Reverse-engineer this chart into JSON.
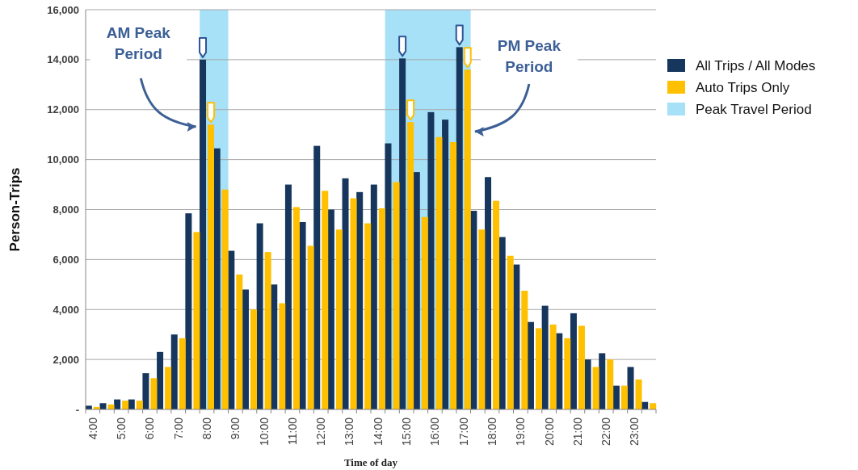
{
  "chart_data": {
    "type": "bar",
    "xlabel": "Time of day",
    "ylabel": "Person-Trips",
    "x": [
      4,
      4.5,
      5,
      5.5,
      6,
      6.5,
      7,
      7.5,
      8,
      8.5,
      9,
      9.5,
      10,
      10.5,
      11,
      11.5,
      12,
      12.5,
      13,
      13.5,
      14,
      14.5,
      15,
      15.5,
      16,
      16.5,
      17,
      17.5,
      18,
      18.5,
      19,
      19.5,
      20,
      20.5,
      21,
      21.5,
      22,
      22.5,
      23,
      23.5
    ],
    "xlim": [
      3.75,
      23.75
    ],
    "xticks": [
      {
        "value": 4,
        "label": "4:00"
      },
      {
        "value": 5,
        "label": "5:00"
      },
      {
        "value": 6,
        "label": "6:00"
      },
      {
        "value": 7,
        "label": "7:00"
      },
      {
        "value": 8,
        "label": "8:00"
      },
      {
        "value": 9,
        "label": "9:00"
      },
      {
        "value": 10,
        "label": "10:00"
      },
      {
        "value": 11,
        "label": "11:00"
      },
      {
        "value": 12,
        "label": "12:00"
      },
      {
        "value": 13,
        "label": "13:00"
      },
      {
        "value": 14,
        "label": "14:00"
      },
      {
        "value": 15,
        "label": "15:00"
      },
      {
        "value": 16,
        "label": "16:00"
      },
      {
        "value": 17,
        "label": "17:00"
      },
      {
        "value": 18,
        "label": "18:00"
      },
      {
        "value": 19,
        "label": "19:00"
      },
      {
        "value": 20,
        "label": "20:00"
      },
      {
        "value": 21,
        "label": "21:00"
      },
      {
        "value": 22,
        "label": "22:00"
      },
      {
        "value": 23,
        "label": "23:00"
      }
    ],
    "ylim": [
      0,
      16000
    ],
    "yticks": [
      {
        "value": 0,
        "label": "-"
      },
      {
        "value": 2000,
        "label": "2,000"
      },
      {
        "value": 4000,
        "label": "4,000"
      },
      {
        "value": 6000,
        "label": "6,000"
      },
      {
        "value": 8000,
        "label": "8,000"
      },
      {
        "value": 10000,
        "label": "10,000"
      },
      {
        "value": 12000,
        "label": "12,000"
      },
      {
        "value": 14000,
        "label": "14,000"
      },
      {
        "value": 16000,
        "label": "16,000"
      }
    ],
    "grid": "y",
    "legend": "right",
    "series": [
      {
        "name": "All Trips / All Modes",
        "color": "#17365d",
        "values": [
          150,
          250,
          400,
          400,
          1450,
          2300,
          3000,
          7850,
          14000,
          10450,
          6350,
          4800,
          7450,
          5000,
          9000,
          7500,
          10550,
          8000,
          9250,
          8700,
          9000,
          10650,
          14050,
          9500,
          11900,
          11600,
          14500,
          7950,
          9300,
          6900,
          5800,
          3500,
          4150,
          3050,
          3850,
          2000,
          2250,
          950,
          1700,
          300
        ]
      },
      {
        "name": "Auto Trips Only",
        "color": "#ffc000",
        "values": [
          100,
          200,
          350,
          350,
          1250,
          1700,
          2850,
          7100,
          11400,
          8800,
          5400,
          4000,
          6300,
          4250,
          8100,
          6550,
          8750,
          7200,
          8450,
          7450,
          8050,
          9100,
          11500,
          7700,
          10900,
          10700,
          13600,
          7200,
          8350,
          6150,
          4750,
          3250,
          3400,
          2850,
          3350,
          1700,
          2000,
          950,
          1200,
          250
        ]
      }
    ],
    "bands": [
      {
        "axis": "x",
        "from": 7.75,
        "to": 8.75,
        "color": "#a6e1f7"
      },
      {
        "axis": "x",
        "from": 14.25,
        "to": 17.25,
        "color": "#a6e1f7"
      }
    ],
    "annotations": [
      "AM Peak Period",
      "PM Peak Period",
      "Peak Travel Period"
    ]
  }
}
